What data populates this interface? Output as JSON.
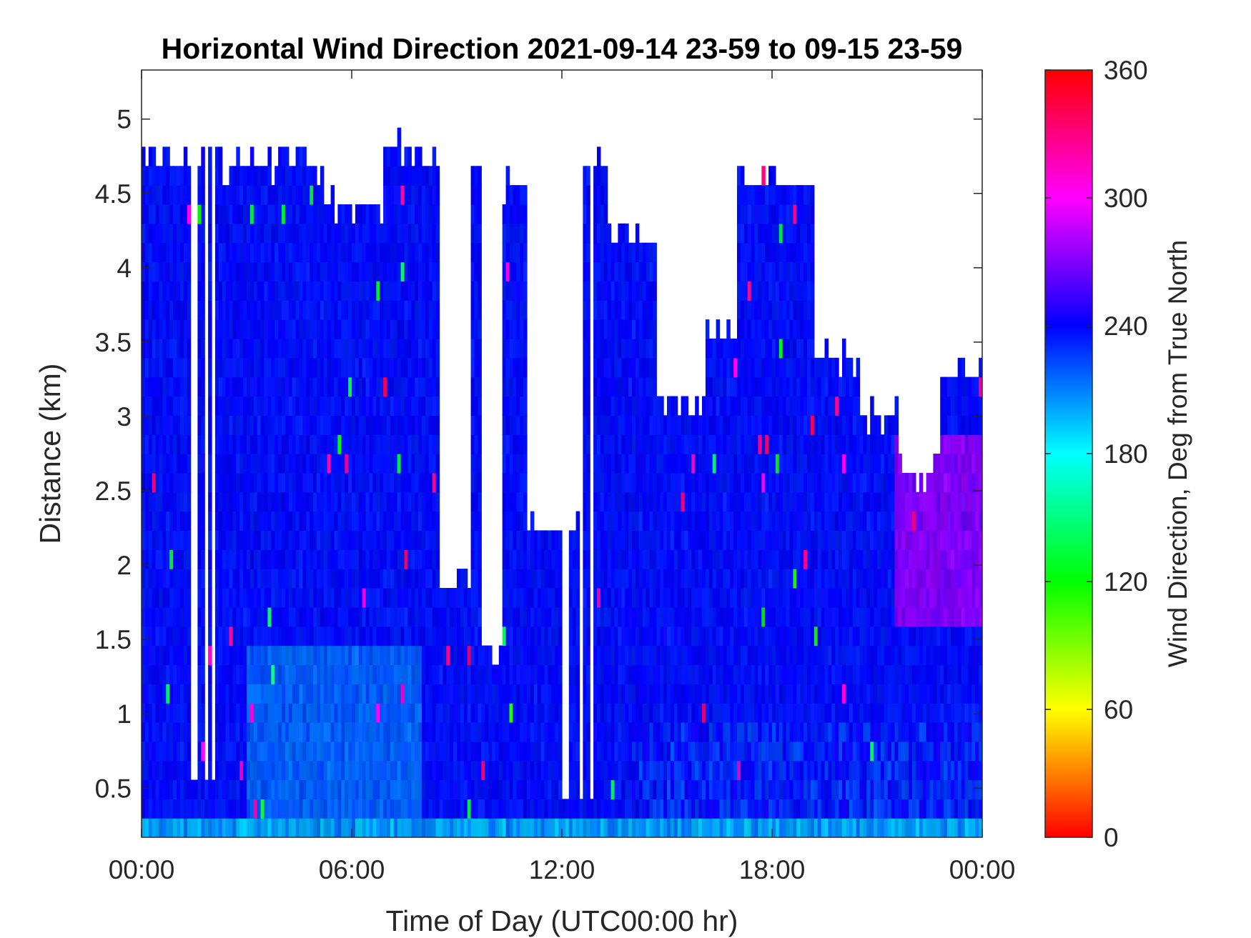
{
  "chart_data": {
    "type": "heatmap",
    "title": "Horizontal Wind Direction 2021-09-14 23-59 to 09-15 23-59",
    "xlabel": "Time of Day (UTC00:00 hr)",
    "ylabel": "Distance (km)",
    "x_ticks": [
      "00:00",
      "06:00",
      "12:00",
      "18:00",
      "00:00"
    ],
    "x_tick_values": [
      0,
      6,
      12,
      18,
      24
    ],
    "xlim": [
      0,
      24
    ],
    "y_ticks": [
      "0.5",
      "1",
      "1.5",
      "2",
      "2.5",
      "3",
      "3.5",
      "4",
      "4.5",
      "5"
    ],
    "y_tick_values": [
      0.5,
      1,
      1.5,
      2,
      2.5,
      3,
      3.5,
      4,
      4.5,
      5
    ],
    "ylim": [
      0.17,
      5.33
    ],
    "colorbar": {
      "label": "Wind Direction, Deg from True North",
      "ticks": [
        "0",
        "60",
        "120",
        "180",
        "240",
        "300",
        "360"
      ],
      "tick_values": [
        0,
        60,
        120,
        180,
        240,
        300,
        360
      ],
      "range": [
        0,
        360
      ],
      "colormap": "hsv"
    },
    "grid": false,
    "colors": {
      "missing_data": "#ffffff",
      "axis": "#262626"
    }
  }
}
